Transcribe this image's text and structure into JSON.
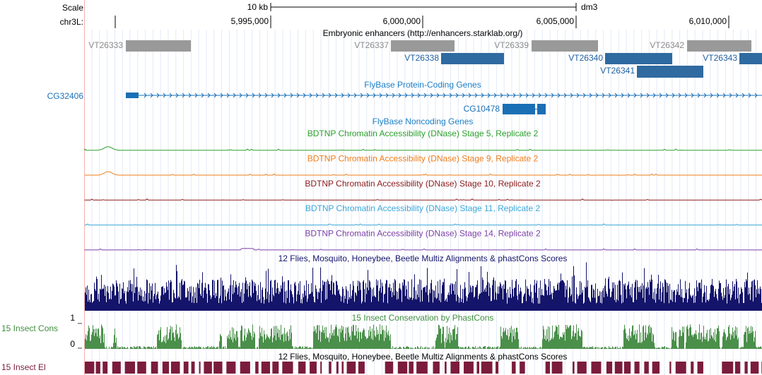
{
  "ruler": {
    "scale": "Scale",
    "span": "10 kb",
    "assembly": "dm3",
    "chrom": "chr3L:",
    "ticks": [
      "5,995,000",
      "6,000,000",
      "6,005,000",
      "6,010,000"
    ]
  },
  "enhancers": {
    "title": "Embryonic enhancers (http://enhancers.starklab.org/)",
    "items": [
      "VT26333",
      "VT26337",
      "VT26339",
      "VT26342",
      "VT26338",
      "VT26340",
      "VT26343",
      "VT26341"
    ]
  },
  "genes": {
    "title": "FlyBase Protein-Coding Genes",
    "items": [
      "CG32406",
      "CG10478"
    ]
  },
  "noncoding": {
    "title": "FlyBase Noncoding Genes"
  },
  "dnase": [
    "BDTNP Chromatin Accessibility (DNase) Stage 5, Replicate 2",
    "BDTNP Chromatin Accessibility (DNase) Stage 9, Replicate 2",
    "BDTNP Chromatin Accessibility (DNase) Stage 10, Replicate 2",
    "BDTNP Chromatin Accessibility (DNase) Stage 11, Replicate 2",
    "BDTNP Chromatin Accessibility (DNase) Stage 14, Replicate 2"
  ],
  "multiz": {
    "title": "12 Flies, Mosquito, Honeybee, Beetle Multiz Alignments & phastCons Scores"
  },
  "phastcons": {
    "title": "15 Insect Conservation by PhastCons",
    "side_label": "15 Insect Cons",
    "axis_max": "1",
    "axis_min": "0"
  },
  "elements": {
    "title": "12 Flies, Mosquito, Honeybee, Beetle Multiz Alignments & phastCons Scores",
    "side_label": "15 Insect El"
  }
}
